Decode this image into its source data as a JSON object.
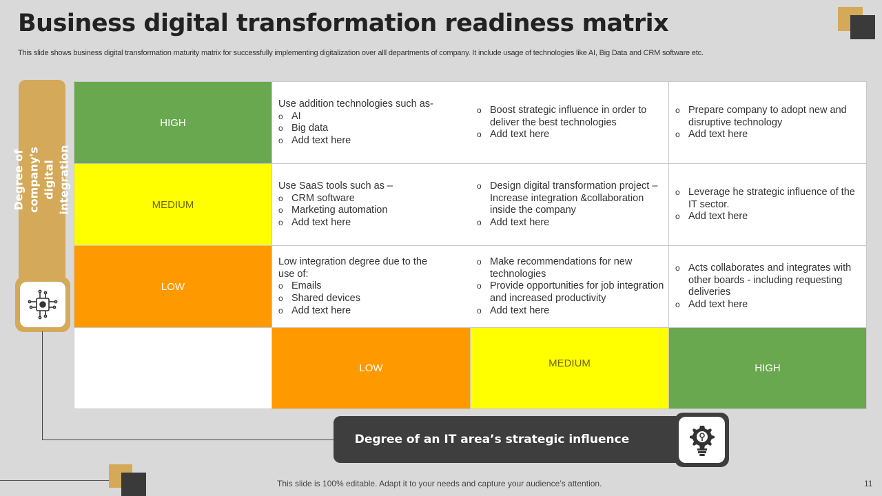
{
  "header": {
    "title": "Business digital transformation readiness matrix",
    "subtitle": "This slide shows business digital transformation maturity matrix for successfully implementing digitalization over alll departments of company. It include usage of technologies like AI, Big Data and CRM software etc."
  },
  "y_axis": {
    "label": "Degree of company's digital integration",
    "icon": "circuit-chip-icon"
  },
  "x_axis": {
    "label": "Degree of an IT area’s strategic influence",
    "icon": "lightbulb-gear-icon"
  },
  "rows": [
    {
      "label": "HIGH",
      "cells": [
        {
          "intro": "Use addition technologies such as-",
          "bullets": [
            "AI",
            "Big data",
            "Add text here"
          ]
        },
        {
          "intro": "",
          "bullets": [
            "Boost strategic influence in order to deliver the best technologies",
            "Add text here"
          ]
        },
        {
          "intro": "",
          "bullets": [
            "Prepare company to adopt new and disruptive technology",
            "Add text here"
          ]
        }
      ]
    },
    {
      "label": "MEDIUM",
      "cells": [
        {
          "intro": "Use SaaS tools such as –",
          "bullets": [
            "CRM software",
            "Marketing automation",
            "Add text here"
          ]
        },
        {
          "intro": "",
          "bullets": [
            "Design digital transformation project – Increase integration &collaboration inside the company",
            "Add text here"
          ]
        },
        {
          "intro": "",
          "bullets": [
            "Leverage he strategic influence of the IT sector.",
            "Add text here"
          ]
        }
      ]
    },
    {
      "label": "LOW",
      "cells": [
        {
          "intro": "Low integration degree  due to the use of:",
          "bullets": [
            "Emails",
            "Shared devices",
            "Add text here"
          ]
        },
        {
          "intro": "",
          "bullets": [
            "Make recommendations for new technologies",
            "Provide opportunities for job integration and increased productivity",
            "Add text here"
          ]
        },
        {
          "intro": "",
          "bullets": [
            "Acts collaborates and integrates with other boards - including requesting deliveries",
            "Add text here"
          ]
        }
      ]
    }
  ],
  "columns": [
    "LOW",
    "MEDIUM",
    "HIGH"
  ],
  "bullet_glyph": "o",
  "colors": {
    "high": "#6aa84f",
    "medium": "#ffff00",
    "low": "#ff9900",
    "accent_gold": "#d4a959",
    "dark": "#3e3e3e"
  },
  "footer": {
    "note": "This slide is 100% editable. Adapt it to your needs and capture your audience’s attention.",
    "page_number": "11"
  }
}
